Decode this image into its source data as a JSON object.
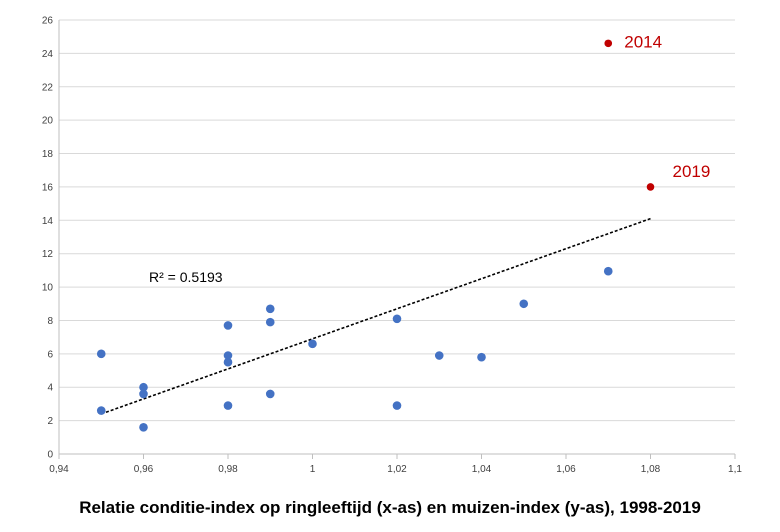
{
  "chart_data": {
    "type": "scatter",
    "caption": "Relatie conditie-index op ringleeftijd (x-as) en muizen-index (y-as), 1998-2019",
    "xlim": [
      0.94,
      1.1
    ],
    "ylim": [
      0,
      26
    ],
    "x_ticks": [
      0.94,
      0.96,
      0.98,
      1.0,
      1.02,
      1.04,
      1.06,
      1.08,
      1.1
    ],
    "x_tick_labels": [
      "0,94",
      "0,96",
      "0,98",
      "1",
      "1,02",
      "1,04",
      "1,06",
      "1,08",
      "1,1"
    ],
    "y_ticks": [
      0,
      2,
      4,
      6,
      8,
      10,
      12,
      14,
      16,
      18,
      20,
      22,
      24,
      26
    ],
    "y_tick_labels": [
      "0",
      "2",
      "4",
      "6",
      "8",
      "10",
      "12",
      "14",
      "16",
      "18",
      "20",
      "22",
      "24",
      "26"
    ],
    "grid": "horizontal",
    "colors": {
      "points": "#4472c4",
      "highlight": "#c00000",
      "trendline": "#000000"
    },
    "points": [
      {
        "x": 0.95,
        "y": 6.0
      },
      {
        "x": 0.95,
        "y": 2.6
      },
      {
        "x": 0.96,
        "y": 4.0
      },
      {
        "x": 0.96,
        "y": 3.6
      },
      {
        "x": 0.96,
        "y": 1.6
      },
      {
        "x": 0.98,
        "y": 7.7
      },
      {
        "x": 0.98,
        "y": 5.9
      },
      {
        "x": 0.98,
        "y": 5.5
      },
      {
        "x": 0.98,
        "y": 2.9
      },
      {
        "x": 0.99,
        "y": 8.7
      },
      {
        "x": 0.99,
        "y": 7.9
      },
      {
        "x": 0.99,
        "y": 3.6
      },
      {
        "x": 1.0,
        "y": 6.6
      },
      {
        "x": 1.02,
        "y": 8.1
      },
      {
        "x": 1.02,
        "y": 2.9
      },
      {
        "x": 1.03,
        "y": 5.9
      },
      {
        "x": 1.04,
        "y": 5.8
      },
      {
        "x": 1.05,
        "y": 9.0
      },
      {
        "x": 1.07,
        "y": 10.95
      }
    ],
    "highlighted_points": [
      {
        "x": 1.07,
        "y": 24.6,
        "label": "2014"
      },
      {
        "x": 1.08,
        "y": 16.0,
        "label": "2019"
      }
    ],
    "trendline": {
      "type": "linear",
      "x": [
        0.95,
        1.08
      ],
      "y": [
        2.4,
        14.1
      ],
      "r_squared_label": "R² = 0.5193"
    }
  }
}
